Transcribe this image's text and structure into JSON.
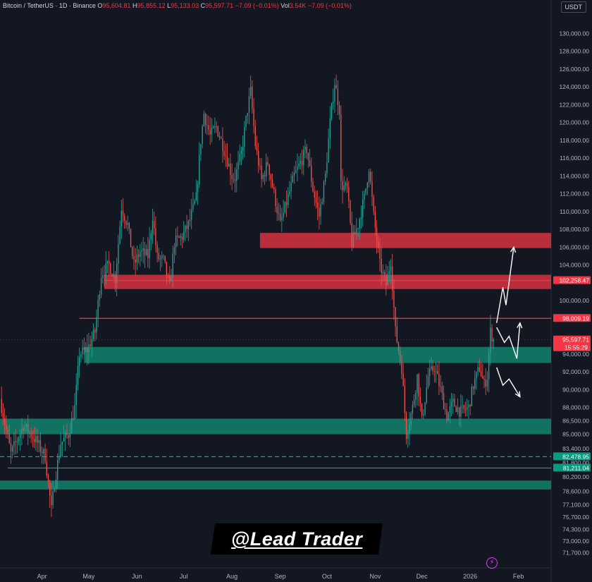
{
  "header": {
    "symbol": "Bitcoin / TetherUS · 1D · Binance",
    "open_label": "O",
    "open": "95,604.81",
    "high_label": "H",
    "high": "95,855.12",
    "low_label": "L",
    "low": "95,133.03",
    "close_label": "C",
    "close": "95,597.71",
    "change": "−7.09 (−0.01%)",
    "vol_label": "Vol",
    "vol": "3.54K",
    "vol_change": "−7.09 (−0.01%)"
  },
  "currency": "USDT",
  "watermark": "@Lead Trader",
  "colors": {
    "background": "#131722",
    "up": "#26a69a",
    "down": "#ef5350",
    "red_zone": "#c9313f",
    "green_zone": "#11806a",
    "text": "#b2b5be"
  },
  "chart_data": {
    "type": "candlestick",
    "xlabel": "",
    "ylabel": "",
    "x_ticks": [
      "Apr",
      "May",
      "Jun",
      "Jul",
      "Aug",
      "Sep",
      "Oct",
      "Nov",
      "Dec",
      "2026",
      "Feb"
    ],
    "x_tick_dates": [
      "2025-04-01",
      "2025-05-01",
      "2025-06-01",
      "2025-07-01",
      "2025-08-01",
      "2025-09-01",
      "2025-10-01",
      "2025-11-01",
      "2025-12-01",
      "2026-01-01",
      "2026-02-01"
    ],
    "xlim": [
      "2025-03-05",
      "2026-02-22"
    ],
    "ylim": [
      70000,
      132000
    ],
    "y_ticks": [
      130000,
      128000,
      126000,
      124000,
      122000,
      120000,
      118000,
      116000,
      114000,
      112000,
      110000,
      108000,
      106000,
      104000,
      100000,
      94000,
      92000,
      90000,
      88000,
      86500,
      85000,
      83400,
      81800,
      80200,
      78600,
      77100,
      75700,
      74300,
      73000,
      71700
    ],
    "y_tick_labels": [
      "130,000.00",
      "128,000.00",
      "126,000.00",
      "124,000.00",
      "122,000.00",
      "120,000.00",
      "118,000.00",
      "116,000.00",
      "114,000.00",
      "112,000.00",
      "110,000.00",
      "108,000.00",
      "106,000.00",
      "104,000.00",
      "100,000.00",
      "94,000.00",
      "92,000.00",
      "90,000.00",
      "88,000.00",
      "86,500.00",
      "85,000.00",
      "83,400.00",
      "81,800.00",
      "80,200.00",
      "78,600.00",
      "77,100.00",
      "75,700.00",
      "74,300.00",
      "73,000.00",
      "71,700.00"
    ],
    "price_path": [
      [
        "2025-03-05",
        89000
      ],
      [
        "2025-03-12",
        82800
      ],
      [
        "2025-03-20",
        86000
      ],
      [
        "2025-03-28",
        84300
      ],
      [
        "2025-04-03",
        82500
      ],
      [
        "2025-04-07",
        76500
      ],
      [
        "2025-04-09",
        79500
      ],
      [
        "2025-04-13",
        84000
      ],
      [
        "2025-04-18",
        85000
      ],
      [
        "2025-04-22",
        88000
      ],
      [
        "2025-04-25",
        94000
      ],
      [
        "2025-04-30",
        94500
      ],
      [
        "2025-05-05",
        96500
      ],
      [
        "2025-05-09",
        103000
      ],
      [
        "2025-05-14",
        104000
      ],
      [
        "2025-05-18",
        102500
      ],
      [
        "2025-05-22",
        110500
      ],
      [
        "2025-05-26",
        108500
      ],
      [
        "2025-05-30",
        104000
      ],
      [
        "2025-06-03",
        105500
      ],
      [
        "2025-06-08",
        105000
      ],
      [
        "2025-06-11",
        109500
      ],
      [
        "2025-06-14",
        104800
      ],
      [
        "2025-06-18",
        104500
      ],
      [
        "2025-06-22",
        101500
      ],
      [
        "2025-06-25",
        106500
      ],
      [
        "2025-06-30",
        107200
      ],
      [
        "2025-07-04",
        108500
      ],
      [
        "2025-07-09",
        111500
      ],
      [
        "2025-07-12",
        118000
      ],
      [
        "2025-07-14",
        121000
      ],
      [
        "2025-07-18",
        118500
      ],
      [
        "2025-07-22",
        119500
      ],
      [
        "2025-07-26",
        117500
      ],
      [
        "2025-08-01",
        114000
      ],
      [
        "2025-08-03",
        113800
      ],
      [
        "2025-08-07",
        116500
      ],
      [
        "2025-08-11",
        121500
      ],
      [
        "2025-08-13",
        123500
      ],
      [
        "2025-08-16",
        117500
      ],
      [
        "2025-08-20",
        113500
      ],
      [
        "2025-08-24",
        115500
      ],
      [
        "2025-08-28",
        112000
      ],
      [
        "2025-09-01",
        108500
      ],
      [
        "2025-09-05",
        111000
      ],
      [
        "2025-09-10",
        114000
      ],
      [
        "2025-09-14",
        115500
      ],
      [
        "2025-09-18",
        117000
      ],
      [
        "2025-09-22",
        112500
      ],
      [
        "2025-09-26",
        109500
      ],
      [
        "2025-09-30",
        114000
      ],
      [
        "2025-10-03",
        120000
      ],
      [
        "2025-10-06",
        124500
      ],
      [
        "2025-10-09",
        121500
      ],
      [
        "2025-10-10",
        113000
      ],
      [
        "2025-10-14",
        112500
      ],
      [
        "2025-10-17",
        106500
      ],
      [
        "2025-10-21",
        108500
      ],
      [
        "2025-10-25",
        111500
      ],
      [
        "2025-10-28",
        115000
      ],
      [
        "2025-10-31",
        109500
      ],
      [
        "2025-11-04",
        104000
      ],
      [
        "2025-11-08",
        101800
      ],
      [
        "2025-11-11",
        104500
      ],
      [
        "2025-11-14",
        96500
      ],
      [
        "2025-11-18",
        92500
      ],
      [
        "2025-11-21",
        85000
      ],
      [
        "2025-11-25",
        88000
      ],
      [
        "2025-11-28",
        91500
      ],
      [
        "2025-12-01",
        86500
      ],
      [
        "2025-12-05",
        91500
      ],
      [
        "2025-12-09",
        92500
      ],
      [
        "2025-12-13",
        90000
      ],
      [
        "2025-12-17",
        87000
      ],
      [
        "2025-12-21",
        88500
      ],
      [
        "2025-12-26",
        87500
      ],
      [
        "2025-12-31",
        88000
      ],
      [
        "2026-01-03",
        90500
      ],
      [
        "2026-01-07",
        92500
      ],
      [
        "2026-01-10",
        90500
      ],
      [
        "2026-01-12",
        91500
      ],
      [
        "2026-01-14",
        96500
      ],
      [
        "2026-01-16",
        95600
      ]
    ],
    "zones": [
      {
        "color": "red",
        "y1": 105900,
        "y2": 107600,
        "x1": "2025-08-19",
        "x2": "2026-02-22"
      },
      {
        "color": "red",
        "y1": 101300,
        "y2": 102900,
        "x1": "2025-05-11",
        "x2": "2026-02-22"
      },
      {
        "color": "green",
        "y1": 93000,
        "y2": 94800,
        "x1": "2025-04-28",
        "x2": "2026-02-22"
      },
      {
        "color": "green",
        "y1": 85000,
        "y2": 86750,
        "x1": "2025-03-05",
        "x2": "2026-02-22"
      },
      {
        "color": "green",
        "y1": 78800,
        "y2": 79800,
        "x1": "2025-03-05",
        "x2": "2026-02-22"
      }
    ],
    "lines": [
      {
        "y": 98009.19,
        "style": "solid",
        "color": "red",
        "x1": "2025-04-25"
      },
      {
        "y": 102258.47,
        "style": "solid",
        "color": "red",
        "x1": "2025-05-11"
      },
      {
        "y": 82478.95,
        "style": "dashed",
        "color": "green",
        "x1": "2025-03-05"
      },
      {
        "y": 81211.04,
        "style": "solid",
        "color": "green",
        "x1": "2025-03-10"
      },
      {
        "y": 95597.71,
        "style": "dotted",
        "color": "red",
        "x1": "2025-03-05"
      }
    ],
    "price_tags": [
      {
        "value": 102258.47,
        "label": "102,258.47",
        "color": "red"
      },
      {
        "value": 98009.19,
        "label": "98,009.19",
        "color": "red"
      },
      {
        "value": 95597.71,
        "label": "95,597.71",
        "sub": "15:55:29",
        "color": "red"
      },
      {
        "value": 82478.95,
        "label": "82,478.95",
        "color": "green"
      },
      {
        "value": 81211.04,
        "label": "81,211.04",
        "color": "green"
      }
    ],
    "projections": [
      [
        [
          "2026-01-18",
          97500
        ],
        [
          "2026-01-22",
          101500
        ],
        [
          "2026-01-24",
          99500
        ],
        [
          "2026-01-29",
          106000
        ]
      ],
      [
        [
          "2026-01-18",
          97000
        ],
        [
          "2026-01-23",
          95300
        ],
        [
          "2026-01-26",
          96000
        ],
        [
          "2026-01-31",
          93500
        ],
        [
          "2026-02-02",
          97500
        ]
      ],
      [
        [
          "2026-01-18",
          92500
        ],
        [
          "2026-01-22",
          90500
        ],
        [
          "2026-01-26",
          91200
        ],
        [
          "2026-02-02",
          89200
        ]
      ]
    ]
  }
}
